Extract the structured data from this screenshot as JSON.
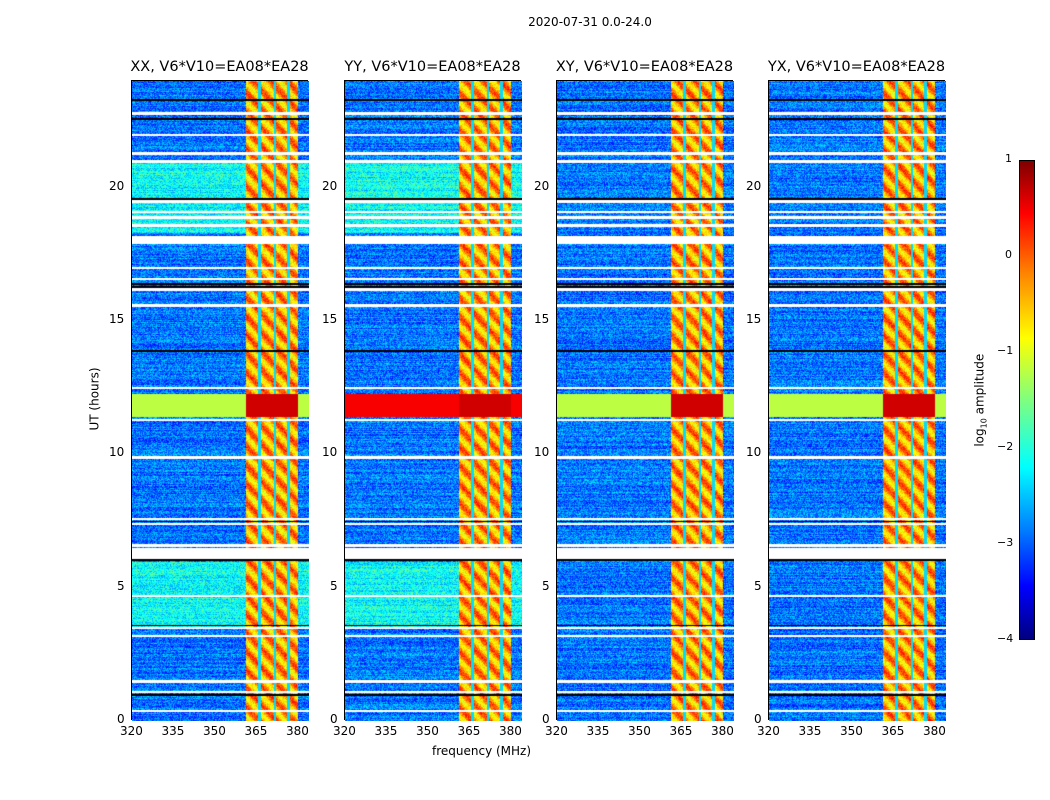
{
  "chart_data": {
    "type": "heatmap",
    "title": "2020-07-31 0.0-24.0",
    "xlabel": "frequency (MHz)",
    "ylabel": "UT (hours)",
    "xlim": [
      320,
      384
    ],
    "ylim": [
      0,
      24
    ],
    "xticks": [
      "320",
      "335",
      "350",
      "365",
      "380"
    ],
    "yticks": [
      "0",
      "5",
      "10",
      "15",
      "20"
    ],
    "panels": [
      {
        "title": "XX, V6*V10=EA08*EA28"
      },
      {
        "title": "YY, V6*V10=EA08*EA28"
      },
      {
        "title": "XY, V6*V10=EA08*EA28"
      },
      {
        "title": "YX, V6*V10=EA08*EA28"
      }
    ],
    "features": {
      "rfi_band_mhz": [
        361,
        380
      ],
      "rfi_level_log10": -0.4,
      "background_level_log10": -2.8,
      "strong_rfi_hours": [
        11.4,
        12.3
      ],
      "gap_hours": [
        [
          6.1,
          6.5
        ],
        [
          17.9,
          18.2
        ]
      ]
    },
    "colorbar": {
      "label": "log10 amplitude",
      "label_main": "log",
      "label_sub": "10",
      "label_rest": " amplitude",
      "range": [
        -4,
        1
      ],
      "ticks": [
        "1",
        "0",
        "−1",
        "−2",
        "−3",
        "−4"
      ],
      "colormap": "jet"
    }
  }
}
